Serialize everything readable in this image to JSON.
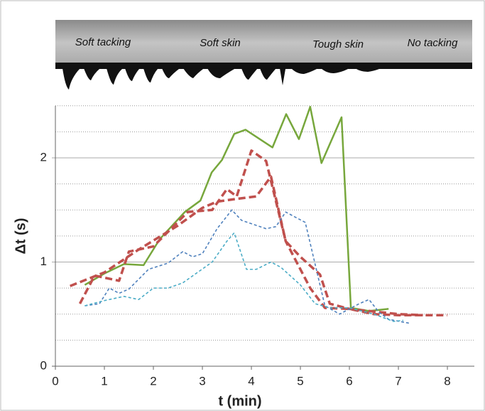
{
  "chart_data": {
    "type": "line",
    "annotations": [
      "Soft tacking",
      "Soft skin",
      "Tough skin",
      "No tacking"
    ],
    "x_label": "t (min)",
    "y_label": "Δt (s)",
    "xlim": [
      0,
      8.55
    ],
    "xticks": [
      0,
      1,
      2,
      3,
      4,
      5,
      6,
      7,
      8
    ],
    "ylim": [
      0,
      2.5
    ],
    "yticks": [
      0,
      1,
      2
    ],
    "minor_yticks": [
      0.25,
      0.5,
      0.75,
      1.25,
      1.5,
      1.75,
      2.25,
      2.5
    ],
    "grid": true,
    "series": [
      {
        "color": "#77a73c",
        "dash": "none",
        "width": 2.5,
        "x": [
          0.6,
          1,
          1.4,
          1.8,
          2.13,
          2.64,
          2.96,
          3.19,
          3.4,
          3.65,
          3.88,
          4.43,
          4.71,
          4.97,
          5.2,
          5.43,
          5.84,
          6.03,
          6.4,
          6.8
        ],
        "values": [
          0.78,
          0.89,
          0.98,
          0.97,
          1.22,
          1.48,
          1.59,
          1.86,
          1.98,
          2.23,
          2.27,
          2.1,
          2.42,
          2.18,
          2.49,
          1.95,
          2.39,
          0.56,
          0.53,
          0.55
        ]
      },
      {
        "color": "#c0504d",
        "dash": "10 5",
        "width": 3.5,
        "x": [
          0.3,
          1,
          1.7,
          2.5,
          3,
          3.3,
          3.6,
          4.1,
          4.4,
          4.7,
          5.2,
          5.5,
          6,
          6.5,
          7,
          8
        ],
        "values": [
          0.77,
          0.9,
          1.12,
          1.35,
          1.52,
          1.58,
          1.6,
          1.63,
          1.82,
          1.2,
          0.75,
          0.56,
          0.55,
          0.5,
          0.49,
          0.49
        ]
      },
      {
        "color": "#c0504d",
        "dash": "10 5",
        "width": 3.5,
        "x": [
          0.5,
          0.8,
          1.3,
          1.5,
          2,
          2.7,
          3.2,
          3.5,
          3.7,
          4,
          4.3,
          4.7,
          5,
          5.4,
          5.6,
          6,
          6.6,
          7,
          7.5
        ],
        "values": [
          0.6,
          0.87,
          0.82,
          1.1,
          1.15,
          1.48,
          1.5,
          1.7,
          1.63,
          2.07,
          1.97,
          1.2,
          1.05,
          0.88,
          0.6,
          0.55,
          0.52,
          0.5,
          0.49
        ]
      },
      {
        "color": "#4f81bd",
        "dash": "4 3",
        "width": 1.6,
        "x": [
          0.6,
          0.9,
          1.1,
          1.3,
          1.5,
          1.9,
          2.3,
          2.6,
          2.8,
          3,
          3.3,
          3.6,
          3.8,
          4.3,
          4.5,
          4.7,
          5.1,
          5.5,
          5.8,
          6.2,
          6.4,
          6.6,
          6.8,
          7.25
        ],
        "values": [
          0.58,
          0.6,
          0.75,
          0.7,
          0.74,
          0.93,
          0.99,
          1.1,
          1.05,
          1.08,
          1.32,
          1.5,
          1.4,
          1.32,
          1.34,
          1.48,
          1.38,
          0.58,
          0.5,
          0.6,
          0.64,
          0.52,
          0.45,
          0.41
        ]
      },
      {
        "color": "#4bacc6",
        "dash": "4 3",
        "width": 1.6,
        "x": [
          0.6,
          1,
          1.4,
          1.7,
          2,
          2.3,
          2.6,
          2.9,
          3.2,
          3.5,
          3.65,
          3.9,
          4.1,
          4.4,
          4.6,
          5,
          5.3,
          5.6,
          6,
          6.5,
          6.9,
          7.1
        ],
        "values": [
          0.58,
          0.63,
          0.67,
          0.64,
          0.75,
          0.75,
          0.8,
          0.9,
          1.0,
          1.2,
          1.28,
          0.93,
          0.93,
          1.0,
          0.95,
          0.78,
          0.6,
          0.56,
          0.56,
          0.5,
          0.43,
          0.44
        ]
      }
    ]
  }
}
